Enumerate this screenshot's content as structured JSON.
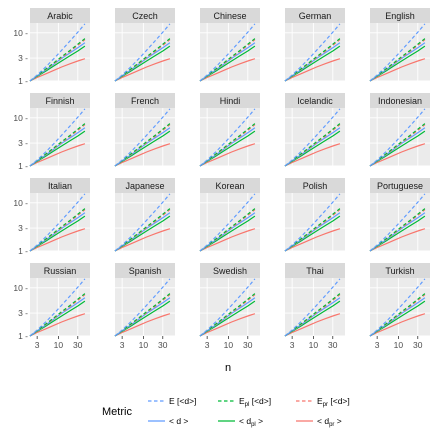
{
  "chart_data": {
    "type": "line",
    "xlabel": "n",
    "ylabel": "",
    "x_scale": "log",
    "y_scale": "log",
    "xlim": [
      2,
      60
    ],
    "ylim": [
      1,
      16
    ],
    "x_ticks": [
      3,
      10,
      30
    ],
    "x_tick_labels": [
      "3",
      "10",
      "30"
    ],
    "y_ticks": [
      1,
      3,
      10
    ],
    "y_tick_labels": [
      "1 -",
      "3 -",
      "10 -"
    ],
    "grid": true,
    "legend_title": "Metric",
    "legend_position": "bottom",
    "legend": [
      {
        "key": "E",
        "label_main": "E [<d>]",
        "label_sub": "",
        "label_tail": "",
        "color": "#619CFF",
        "dash": "dashed"
      },
      {
        "key": "Epl",
        "label_main": "E",
        "label_sub": "pl",
        "label_tail": " [<d>]",
        "color": "#00BA38",
        "dash": "dashed"
      },
      {
        "key": "Epr",
        "label_main": "E",
        "label_sub": "pr",
        "label_tail": " [<d>]",
        "color": "#F8766D",
        "dash": "dashed"
      },
      {
        "key": "d",
        "label_main": "< d >",
        "label_sub": "",
        "label_tail": "",
        "color": "#619CFF",
        "dash": "solid"
      },
      {
        "key": "dpl",
        "label_main": "< d",
        "label_sub": "pl",
        "label_tail": " >",
        "color": "#00BA38",
        "dash": "solid"
      },
      {
        "key": "dpr",
        "label_main": "< d",
        "label_sub": "pr",
        "label_tail": " >",
        "color": "#F8766D",
        "dash": "solid"
      }
    ],
    "languages": [
      "Arabic",
      "Czech",
      "Chinese",
      "German",
      "English",
      "Finnish",
      "French",
      "Hindi",
      "Icelandic",
      "Indonesian",
      "Italian",
      "Japanese",
      "Korean",
      "Polish",
      "Portuguese",
      "Russian",
      "Spanish",
      "Swedish",
      "Thai",
      "Turkish"
    ],
    "x": [
      2,
      3,
      5,
      8,
      12,
      20,
      30,
      45
    ],
    "series_defaults": {
      "E": [
        1.0,
        1.33,
        2.0,
        3.0,
        4.33,
        7.0,
        10.33,
        15.33
      ],
      "Epl": [
        1.0,
        1.3,
        1.8,
        2.45,
        3.2,
        4.4,
        5.8,
        7.6
      ],
      "Epr": [
        1.0,
        1.28,
        1.75,
        2.35,
        3.05,
        4.2,
        5.5,
        7.2
      ],
      "d": [
        1.0,
        1.28,
        1.72,
        2.3,
        2.95,
        3.9,
        4.9,
        6.2
      ],
      "dpl": [
        1.0,
        1.25,
        1.62,
        2.1,
        2.6,
        3.4,
        4.2,
        5.3
      ],
      "dpr": [
        1.0,
        1.18,
        1.42,
        1.68,
        1.95,
        2.3,
        2.6,
        2.9
      ]
    }
  }
}
